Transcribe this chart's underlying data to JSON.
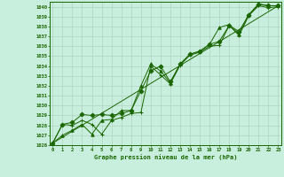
{
  "title": "Graphe pression niveau de la mer (hPa)",
  "bg_color": "#c8eedd",
  "grid_color": "#b0d4c0",
  "line_color": "#1a6600",
  "ylim": [
    1026,
    1040.5
  ],
  "xlim": [
    -0.3,
    23.3
  ],
  "yticks": [
    1026,
    1027,
    1028,
    1029,
    1030,
    1031,
    1032,
    1033,
    1034,
    1035,
    1036,
    1037,
    1038,
    1039,
    1040
  ],
  "xticks": [
    0,
    1,
    2,
    3,
    4,
    5,
    6,
    7,
    8,
    9,
    10,
    11,
    12,
    13,
    14,
    15,
    16,
    17,
    18,
    19,
    20,
    21,
    22,
    23
  ],
  "series": [
    {
      "x": [
        0,
        1,
        2,
        3,
        4,
        5,
        6,
        7,
        8,
        9,
        10,
        11,
        12,
        13,
        14,
        15,
        16,
        17,
        18,
        19,
        20,
        21,
        22,
        23
      ],
      "y": [
        1026.2,
        1028.1,
        1028.0,
        1028.5,
        1028.1,
        1027.1,
        1028.5,
        1028.8,
        1029.2,
        1029.3,
        1034.0,
        1033.1,
        1032.2,
        1034.1,
        1035.1,
        1035.4,
        1036.0,
        1036.1,
        1038.1,
        1037.1,
        1039.1,
        1040.1,
        1039.9,
        1040.0
      ],
      "marker": "+"
    },
    {
      "x": [
        0,
        1,
        2,
        3,
        4,
        5,
        6,
        7,
        8,
        9,
        10,
        11,
        12,
        13,
        14,
        15,
        16,
        17,
        18,
        19,
        20,
        21,
        22,
        23
      ],
      "y": [
        1026.2,
        1028.1,
        1028.3,
        1029.1,
        1029.0,
        1029.1,
        1029.0,
        1029.2,
        1029.5,
        1031.5,
        1033.5,
        1034.0,
        1032.4,
        1034.2,
        1035.2,
        1035.5,
        1036.2,
        1036.5,
        1038.1,
        1037.5,
        1039.2,
        1040.2,
        1040.1,
        1040.1
      ],
      "marker": "D"
    },
    {
      "x": [
        0,
        1,
        2,
        3,
        4,
        5,
        6,
        7,
        8,
        9,
        10,
        11,
        12,
        13,
        14,
        15,
        16,
        17,
        18,
        19,
        20,
        21,
        22,
        23
      ],
      "y": [
        1026.2,
        1027.0,
        1027.5,
        1028.1,
        1027.1,
        1028.5,
        1028.6,
        1029.5,
        1029.5,
        1032.0,
        1034.2,
        1033.5,
        1032.3,
        1034.2,
        1035.2,
        1035.5,
        1036.2,
        1037.9,
        1038.2,
        1037.2,
        1039.2,
        1040.3,
        1040.1,
        1040.1
      ],
      "marker": "^"
    },
    {
      "x": [
        0,
        23
      ],
      "y": [
        1026.2,
        1040.1
      ],
      "marker": null
    }
  ]
}
